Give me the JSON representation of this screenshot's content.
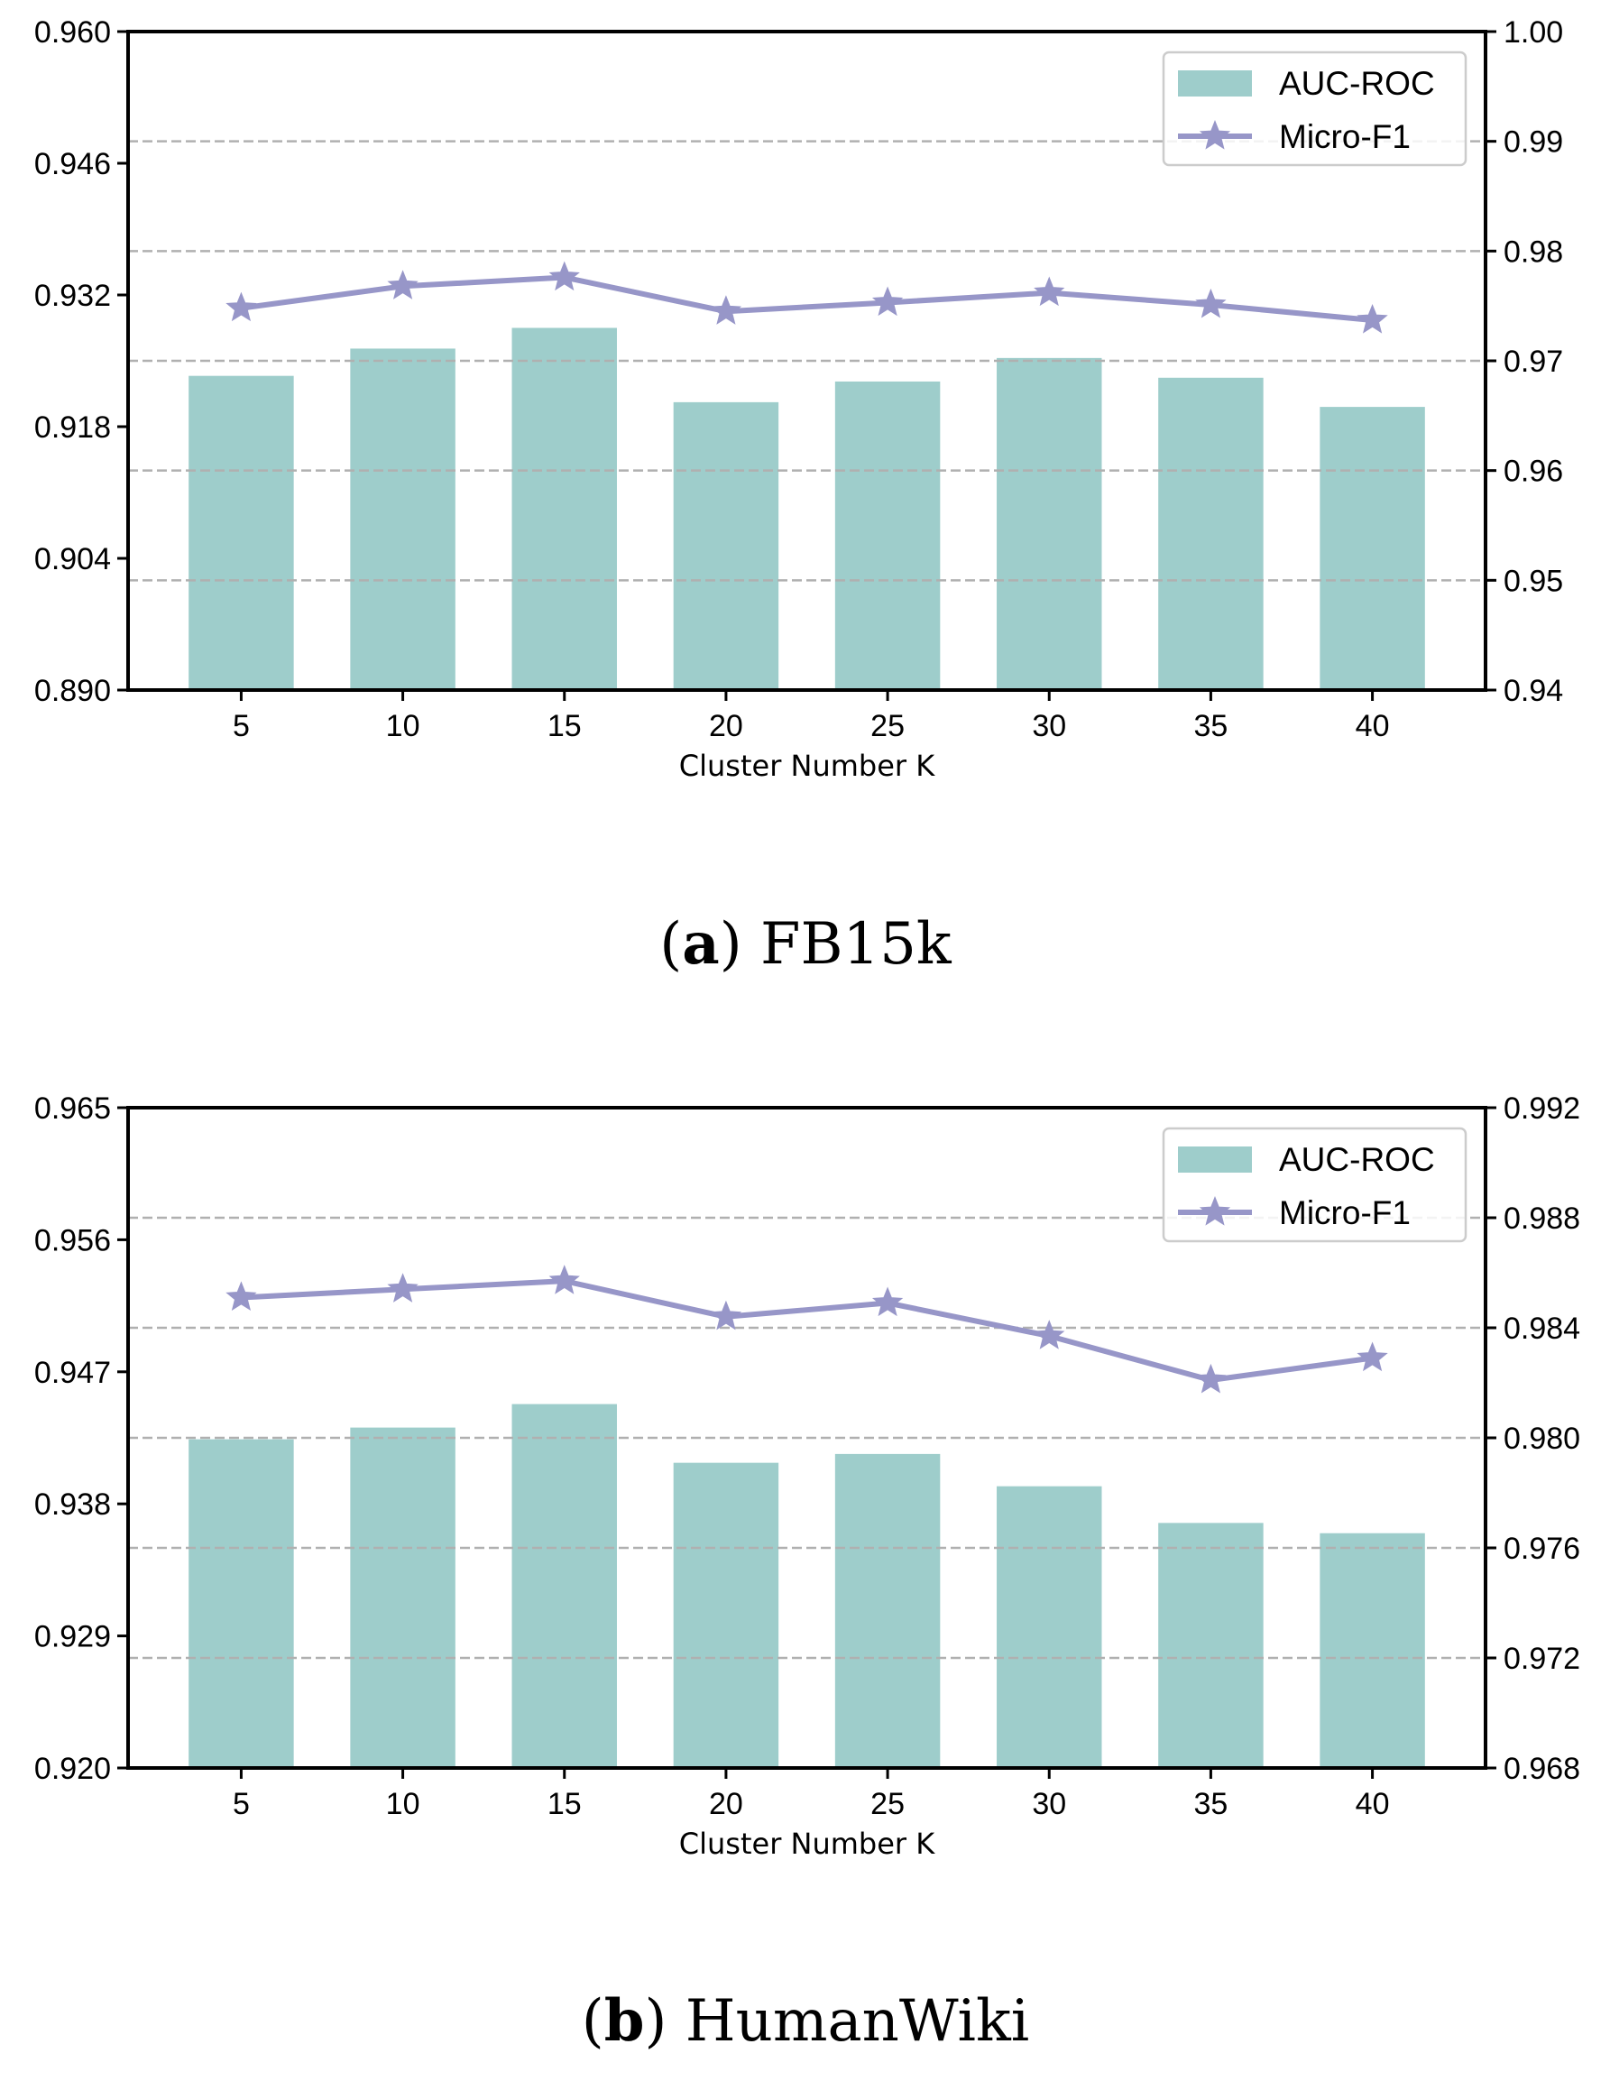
{
  "chart_data": [
    {
      "type": "bar+line",
      "panel": "a",
      "caption_letter": "a",
      "caption_text": "FB15k",
      "xlabel": "Cluster Number K",
      "categories": [
        "5",
        "10",
        "15",
        "20",
        "25",
        "30",
        "35",
        "40"
      ],
      "left_axis": {
        "ylim": [
          0.89,
          0.96
        ],
        "ticks": [
          "0.890",
          "0.904",
          "0.918",
          "0.932",
          "0.946",
          "0.960"
        ]
      },
      "right_axis": {
        "ylim": [
          0.94,
          1.0
        ],
        "ticks": [
          "0.94",
          "0.95",
          "0.96",
          "0.97",
          "0.98",
          "0.99",
          "1.00"
        ]
      },
      "series": [
        {
          "name": "AUC-ROC",
          "type": "bar",
          "axis": "left",
          "color": "#9ecdcb",
          "values": [
            0.9234,
            0.9263,
            0.9285,
            0.9206,
            0.9228,
            0.9253,
            0.9232,
            0.9201
          ]
        },
        {
          "name": "Micro-F1",
          "type": "line",
          "axis": "right",
          "marker": "star",
          "color": "#9796c8",
          "values": [
            0.9748,
            0.9768,
            0.9776,
            0.9745,
            0.9753,
            0.9762,
            0.9751,
            0.9737
          ]
        }
      ],
      "right_grid": true,
      "legend": "top-right"
    },
    {
      "type": "bar+line",
      "panel": "b",
      "caption_letter": "b",
      "caption_text": "HumanWiki",
      "xlabel": "Cluster Number K",
      "categories": [
        "5",
        "10",
        "15",
        "20",
        "25",
        "30",
        "35",
        "40"
      ],
      "left_axis": {
        "ylim": [
          0.92,
          0.965
        ],
        "ticks": [
          "0.920",
          "0.929",
          "0.938",
          "0.947",
          "0.956",
          "0.965"
        ]
      },
      "right_axis": {
        "ylim": [
          0.968,
          0.992
        ],
        "ticks": [
          "0.968",
          "0.972",
          "0.976",
          "0.980",
          "0.984",
          "0.988",
          "0.992"
        ]
      },
      "series": [
        {
          "name": "AUC-ROC",
          "type": "bar",
          "axis": "left",
          "color": "#9ecdcb",
          "values": [
            0.9424,
            0.9432,
            0.9448,
            0.9408,
            0.9414,
            0.9392,
            0.9367,
            0.936
          ]
        },
        {
          "name": "Micro-F1",
          "type": "line",
          "axis": "right",
          "marker": "star",
          "color": "#9796c8",
          "values": [
            0.9851,
            0.9854,
            0.9857,
            0.9844,
            0.9849,
            0.9837,
            0.9821,
            0.9829
          ]
        }
      ],
      "right_grid": true,
      "legend": "top-right"
    }
  ]
}
